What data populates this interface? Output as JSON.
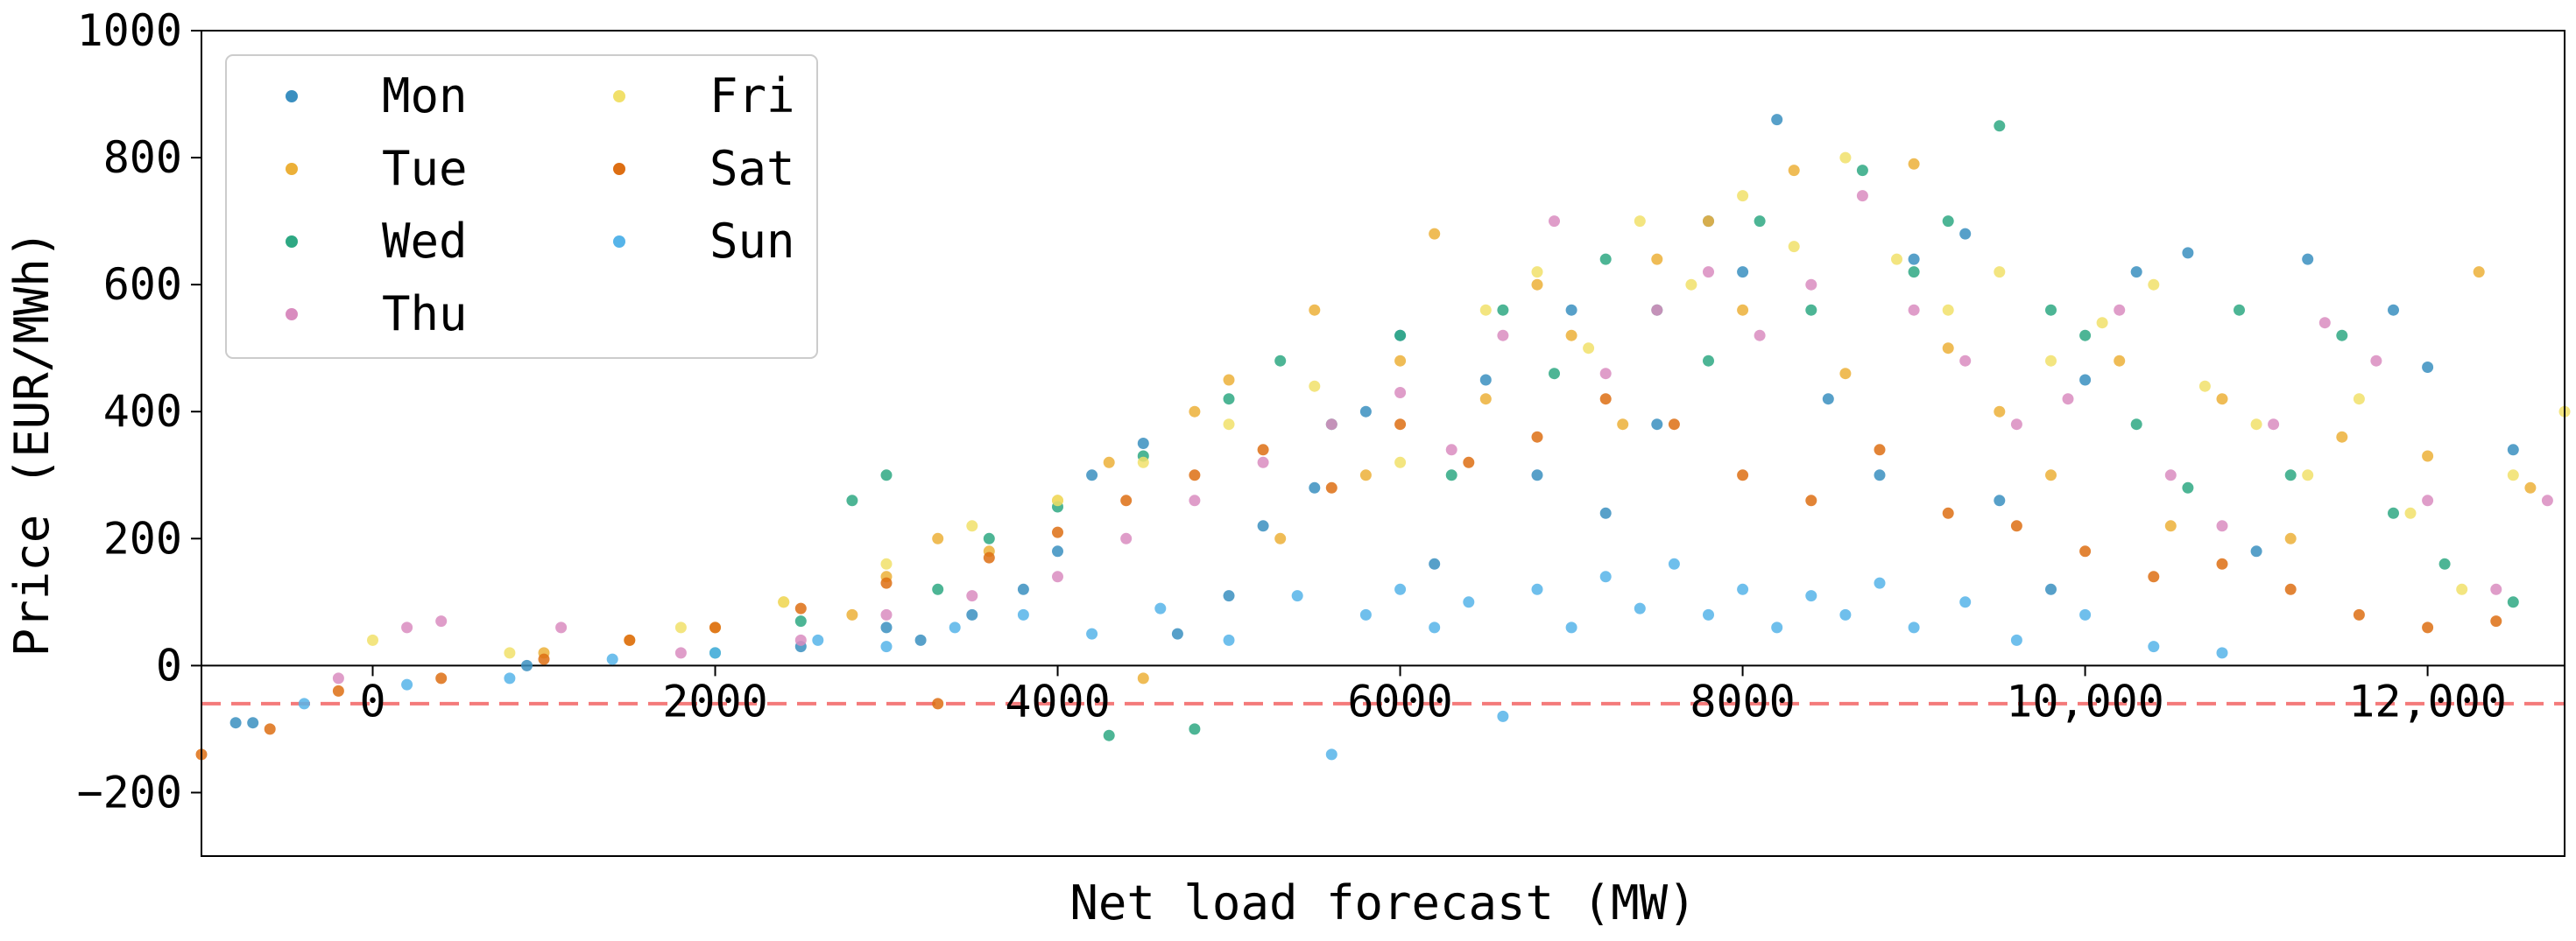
{
  "chart_data": {
    "type": "scatter",
    "title": "",
    "xlabel": "Net load forecast (MW)",
    "ylabel": "Price (EUR/MWh)",
    "xlim": [
      -1000,
      12800
    ],
    "ylim": [
      -300,
      1000
    ],
    "x_ticks": [
      0,
      2000,
      4000,
      6000,
      8000,
      10000,
      12000
    ],
    "x_tick_labels": [
      "0",
      "2000",
      "4000",
      "6000",
      "8000",
      "10,000",
      "12,000"
    ],
    "y_ticks": [
      -200,
      0,
      200,
      400,
      600,
      800,
      1000
    ],
    "y_tick_labels": [
      "−200",
      "0",
      "200",
      "400",
      "600",
      "800",
      "1000"
    ],
    "reference_lines": [
      {
        "orientation": "horizontal",
        "y": 0,
        "color": "#000000",
        "style": "solid"
      },
      {
        "orientation": "horizontal",
        "y": -60,
        "color": "#f47a7a",
        "style": "dashed"
      }
    ],
    "legend": {
      "placement": "top-left",
      "columns": 2
    },
    "series": [
      {
        "name": "Mon",
        "color": "#3a8fc0",
        "points": [
          [
            -700,
            -90
          ],
          [
            -800,
            -90
          ],
          [
            900,
            0
          ],
          [
            2500,
            30
          ],
          [
            3000,
            60
          ],
          [
            3200,
            40
          ],
          [
            3500,
            80
          ],
          [
            3800,
            120
          ],
          [
            4000,
            180
          ],
          [
            4200,
            300
          ],
          [
            4500,
            350
          ],
          [
            4700,
            50
          ],
          [
            5000,
            110
          ],
          [
            5200,
            220
          ],
          [
            5500,
            280
          ],
          [
            5800,
            400
          ],
          [
            6000,
            520
          ],
          [
            6200,
            160
          ],
          [
            6500,
            450
          ],
          [
            6800,
            300
          ],
          [
            7000,
            560
          ],
          [
            7200,
            240
          ],
          [
            7500,
            380
          ],
          [
            7800,
            700
          ],
          [
            8000,
            620
          ],
          [
            8200,
            860
          ],
          [
            8500,
            420
          ],
          [
            8800,
            300
          ],
          [
            9000,
            640
          ],
          [
            9300,
            680
          ],
          [
            9500,
            260
          ],
          [
            9800,
            120
          ],
          [
            10000,
            450
          ],
          [
            10300,
            620
          ],
          [
            10600,
            650
          ],
          [
            11000,
            180
          ],
          [
            11300,
            640
          ],
          [
            11800,
            560
          ],
          [
            12000,
            470
          ],
          [
            12500,
            340
          ]
        ]
      },
      {
        "name": "Tue",
        "color": "#ecb038",
        "points": [
          [
            1000,
            20
          ],
          [
            1500,
            40
          ],
          [
            2000,
            60
          ],
          [
            2400,
            100
          ],
          [
            2800,
            80
          ],
          [
            3000,
            140
          ],
          [
            3300,
            200
          ],
          [
            3600,
            180
          ],
          [
            4000,
            260
          ],
          [
            4300,
            320
          ],
          [
            4500,
            -20
          ],
          [
            4800,
            400
          ],
          [
            5000,
            450
          ],
          [
            5300,
            200
          ],
          [
            5500,
            560
          ],
          [
            5800,
            300
          ],
          [
            6000,
            480
          ],
          [
            6200,
            680
          ],
          [
            6500,
            420
          ],
          [
            6800,
            600
          ],
          [
            7000,
            520
          ],
          [
            7300,
            380
          ],
          [
            7500,
            640
          ],
          [
            7800,
            700
          ],
          [
            8000,
            560
          ],
          [
            8300,
            780
          ],
          [
            8600,
            460
          ],
          [
            9000,
            790
          ],
          [
            9200,
            500
          ],
          [
            9500,
            400
          ],
          [
            9800,
            300
          ],
          [
            10200,
            480
          ],
          [
            10500,
            220
          ],
          [
            10800,
            420
          ],
          [
            11200,
            200
          ],
          [
            11500,
            360
          ],
          [
            12000,
            330
          ],
          [
            12300,
            620
          ],
          [
            12600,
            280
          ]
        ]
      },
      {
        "name": "Wed",
        "color": "#2ea883",
        "points": [
          [
            2000,
            20
          ],
          [
            2500,
            70
          ],
          [
            2800,
            260
          ],
          [
            3000,
            300
          ],
          [
            3300,
            120
          ],
          [
            3600,
            200
          ],
          [
            4000,
            250
          ],
          [
            4300,
            -110
          ],
          [
            4500,
            330
          ],
          [
            4800,
            -100
          ],
          [
            5000,
            420
          ],
          [
            5300,
            480
          ],
          [
            5600,
            380
          ],
          [
            6000,
            520
          ],
          [
            6300,
            300
          ],
          [
            6600,
            560
          ],
          [
            6900,
            460
          ],
          [
            7200,
            640
          ],
          [
            7500,
            560
          ],
          [
            7800,
            480
          ],
          [
            8100,
            700
          ],
          [
            8400,
            560
          ],
          [
            8700,
            780
          ],
          [
            9000,
            620
          ],
          [
            9200,
            700
          ],
          [
            9500,
            850
          ],
          [
            9800,
            560
          ],
          [
            10000,
            520
          ],
          [
            10300,
            380
          ],
          [
            10600,
            280
          ],
          [
            10900,
            560
          ],
          [
            11200,
            300
          ],
          [
            11500,
            520
          ],
          [
            11800,
            240
          ],
          [
            12100,
            160
          ],
          [
            12500,
            100
          ]
        ]
      },
      {
        "name": "Thu",
        "color": "#d98cbf",
        "points": [
          [
            -200,
            -20
          ],
          [
            200,
            60
          ],
          [
            400,
            70
          ],
          [
            1100,
            60
          ],
          [
            1800,
            20
          ],
          [
            2500,
            40
          ],
          [
            3000,
            80
          ],
          [
            3500,
            110
          ],
          [
            4000,
            140
          ],
          [
            4400,
            200
          ],
          [
            4800,
            260
          ],
          [
            5200,
            320
          ],
          [
            5600,
            380
          ],
          [
            6000,
            430
          ],
          [
            6300,
            340
          ],
          [
            6600,
            520
          ],
          [
            6900,
            700
          ],
          [
            7200,
            460
          ],
          [
            7500,
            560
          ],
          [
            7800,
            620
          ],
          [
            8100,
            520
          ],
          [
            8400,
            600
          ],
          [
            8700,
            740
          ],
          [
            9000,
            560
          ],
          [
            9300,
            480
          ],
          [
            9600,
            380
          ],
          [
            9900,
            420
          ],
          [
            10200,
            560
          ],
          [
            10500,
            300
          ],
          [
            10800,
            220
          ],
          [
            11100,
            380
          ],
          [
            11400,
            540
          ],
          [
            11700,
            480
          ],
          [
            12000,
            260
          ],
          [
            12400,
            120
          ],
          [
            12700,
            260
          ]
        ]
      },
      {
        "name": "Fri",
        "color": "#f1e06a",
        "points": [
          [
            0,
            40
          ],
          [
            800,
            20
          ],
          [
            1800,
            60
          ],
          [
            2400,
            100
          ],
          [
            3000,
            160
          ],
          [
            3500,
            220
          ],
          [
            4000,
            260
          ],
          [
            4500,
            320
          ],
          [
            5000,
            380
          ],
          [
            5500,
            440
          ],
          [
            6000,
            320
          ],
          [
            6500,
            560
          ],
          [
            6800,
            620
          ],
          [
            7100,
            500
          ],
          [
            7400,
            700
          ],
          [
            7700,
            600
          ],
          [
            8000,
            740
          ],
          [
            8300,
            660
          ],
          [
            8600,
            800
          ],
          [
            8900,
            640
          ],
          [
            9200,
            560
          ],
          [
            9500,
            620
          ],
          [
            9800,
            480
          ],
          [
            10100,
            540
          ],
          [
            10400,
            600
          ],
          [
            10700,
            440
          ],
          [
            11000,
            380
          ],
          [
            11300,
            300
          ],
          [
            11600,
            420
          ],
          [
            11900,
            240
          ],
          [
            12200,
            120
          ],
          [
            12500,
            300
          ],
          [
            12800,
            400
          ]
        ]
      },
      {
        "name": "Sat",
        "color": "#dd6e13",
        "points": [
          [
            -1000,
            -140
          ],
          [
            -600,
            -100
          ],
          [
            -200,
            -40
          ],
          [
            400,
            -20
          ],
          [
            1000,
            10
          ],
          [
            1500,
            40
          ],
          [
            2000,
            60
          ],
          [
            2500,
            90
          ],
          [
            3000,
            130
          ],
          [
            3300,
            -60
          ],
          [
            3600,
            170
          ],
          [
            4000,
            210
          ],
          [
            4400,
            260
          ],
          [
            4800,
            300
          ],
          [
            5200,
            340
          ],
          [
            5600,
            280
          ],
          [
            6000,
            380
          ],
          [
            6400,
            320
          ],
          [
            6800,
            360
          ],
          [
            7200,
            420
          ],
          [
            7600,
            380
          ],
          [
            8000,
            300
          ],
          [
            8400,
            260
          ],
          [
            8800,
            340
          ],
          [
            9200,
            240
          ],
          [
            9600,
            220
          ],
          [
            10000,
            180
          ],
          [
            10400,
            140
          ],
          [
            10800,
            160
          ],
          [
            11200,
            120
          ],
          [
            11600,
            80
          ],
          [
            12000,
            60
          ],
          [
            12400,
            70
          ]
        ]
      },
      {
        "name": "Sun",
        "color": "#56b4e9",
        "points": [
          [
            -400,
            -60
          ],
          [
            200,
            -30
          ],
          [
            800,
            -20
          ],
          [
            1400,
            10
          ],
          [
            2000,
            20
          ],
          [
            2600,
            40
          ],
          [
            3000,
            30
          ],
          [
            3400,
            60
          ],
          [
            3800,
            80
          ],
          [
            4200,
            50
          ],
          [
            4600,
            90
          ],
          [
            5000,
            40
          ],
          [
            5400,
            110
          ],
          [
            5600,
            -140
          ],
          [
            5800,
            80
          ],
          [
            6000,
            120
          ],
          [
            6200,
            60
          ],
          [
            6400,
            100
          ],
          [
            6600,
            -80
          ],
          [
            6800,
            120
          ],
          [
            7000,
            60
          ],
          [
            7200,
            140
          ],
          [
            7400,
            90
          ],
          [
            7600,
            160
          ],
          [
            7800,
            80
          ],
          [
            8000,
            120
          ],
          [
            8200,
            60
          ],
          [
            8400,
            110
          ],
          [
            8600,
            80
          ],
          [
            8800,
            130
          ],
          [
            9000,
            60
          ],
          [
            9300,
            100
          ],
          [
            9600,
            40
          ],
          [
            10000,
            80
          ],
          [
            10400,
            30
          ],
          [
            10800,
            20
          ]
        ]
      }
    ]
  }
}
